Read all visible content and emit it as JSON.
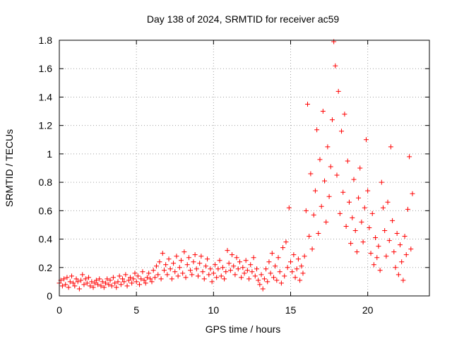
{
  "chart_data": {
    "type": "scatter",
    "title": "Day 138 of 2024, SRMTID for receiver ac59",
    "xlabel": "GPS time / hours",
    "ylabel": "SRMTID / TECUs",
    "xlim": [
      0,
      24
    ],
    "ylim": [
      0,
      1.8
    ],
    "xticks": [
      0,
      5,
      10,
      15,
      20
    ],
    "yticks": [
      0,
      0.2,
      0.4,
      0.6,
      0.8,
      1,
      1.2,
      1.4,
      1.6,
      1.8
    ],
    "xtick_labels": [
      "0",
      "5",
      "10",
      "15",
      "20"
    ],
    "ytick_labels": [
      "0",
      "0.2",
      "0.4",
      "0.6",
      "0.8",
      "1",
      "1.2",
      "1.4",
      "1.6",
      "1.8"
    ],
    "grid": true,
    "marker": "plus",
    "marker_color": "#ff0000",
    "series": [
      {
        "name": "SRMTID",
        "points": [
          [
            0.0,
            0.09
          ],
          [
            0.1,
            0.11
          ],
          [
            0.2,
            0.07
          ],
          [
            0.3,
            0.12
          ],
          [
            0.4,
            0.08
          ],
          [
            0.5,
            0.13
          ],
          [
            0.6,
            0.06
          ],
          [
            0.7,
            0.1
          ],
          [
            0.8,
            0.14
          ],
          [
            0.9,
            0.09
          ],
          [
            1.0,
            0.07
          ],
          [
            1.1,
            0.12
          ],
          [
            1.2,
            0.1
          ],
          [
            1.3,
            0.05
          ],
          [
            1.4,
            0.11
          ],
          [
            1.5,
            0.15
          ],
          [
            1.6,
            0.08
          ],
          [
            1.7,
            0.12
          ],
          [
            1.8,
            0.09
          ],
          [
            1.9,
            0.13
          ],
          [
            2.0,
            0.07
          ],
          [
            2.1,
            0.1
          ],
          [
            2.2,
            0.06
          ],
          [
            2.3,
            0.09
          ],
          [
            2.4,
            0.11
          ],
          [
            2.5,
            0.08
          ],
          [
            2.6,
            0.12
          ],
          [
            2.7,
            0.07
          ],
          [
            2.8,
            0.1
          ],
          [
            2.9,
            0.06
          ],
          [
            3.0,
            0.09
          ],
          [
            3.1,
            0.12
          ],
          [
            3.2,
            0.08
          ],
          [
            3.3,
            0.11
          ],
          [
            3.4,
            0.07
          ],
          [
            3.5,
            0.13
          ],
          [
            3.6,
            0.09
          ],
          [
            3.7,
            0.06
          ],
          [
            3.8,
            0.1
          ],
          [
            3.9,
            0.14
          ],
          [
            4.0,
            0.08
          ],
          [
            4.1,
            0.12
          ],
          [
            4.2,
            0.1
          ],
          [
            4.3,
            0.15
          ],
          [
            4.4,
            0.07
          ],
          [
            4.5,
            0.11
          ],
          [
            4.6,
            0.13
          ],
          [
            4.7,
            0.09
          ],
          [
            4.8,
            0.12
          ],
          [
            4.9,
            0.16
          ],
          [
            5.0,
            0.1
          ],
          [
            5.1,
            0.14
          ],
          [
            5.2,
            0.08
          ],
          [
            5.3,
            0.12
          ],
          [
            5.4,
            0.17
          ],
          [
            5.5,
            0.11
          ],
          [
            5.6,
            0.09
          ],
          [
            5.7,
            0.13
          ],
          [
            5.8,
            0.16
          ],
          [
            5.9,
            0.12
          ],
          [
            6.0,
            0.1
          ],
          [
            6.1,
            0.18
          ],
          [
            6.2,
            0.13
          ],
          [
            6.3,
            0.21
          ],
          [
            6.4,
            0.15
          ],
          [
            6.5,
            0.24
          ],
          [
            6.6,
            0.12
          ],
          [
            6.7,
            0.3
          ],
          [
            6.8,
            0.18
          ],
          [
            6.9,
            0.22
          ],
          [
            7.0,
            0.15
          ],
          [
            7.1,
            0.26
          ],
          [
            7.2,
            0.19
          ],
          [
            7.3,
            0.12
          ],
          [
            7.4,
            0.23
          ],
          [
            7.5,
            0.17
          ],
          [
            7.6,
            0.28
          ],
          [
            7.7,
            0.14
          ],
          [
            7.8,
            0.2
          ],
          [
            7.9,
            0.25
          ],
          [
            8.0,
            0.16
          ],
          [
            8.1,
            0.31
          ],
          [
            8.2,
            0.13
          ],
          [
            8.3,
            0.22
          ],
          [
            8.4,
            0.27
          ],
          [
            8.5,
            0.18
          ],
          [
            8.6,
            0.15
          ],
          [
            8.7,
            0.24
          ],
          [
            8.8,
            0.29
          ],
          [
            8.9,
            0.19
          ],
          [
            9.0,
            0.14
          ],
          [
            9.1,
            0.23
          ],
          [
            9.2,
            0.28
          ],
          [
            9.3,
            0.17
          ],
          [
            9.4,
            0.12
          ],
          [
            9.5,
            0.21
          ],
          [
            9.6,
            0.26
          ],
          [
            9.7,
            0.15
          ],
          [
            9.8,
            0.19
          ],
          [
            9.9,
            0.1
          ],
          [
            10.0,
            0.16
          ],
          [
            10.1,
            0.22
          ],
          [
            10.2,
            0.13
          ],
          [
            10.3,
            0.19
          ],
          [
            10.4,
            0.25
          ],
          [
            10.5,
            0.14
          ],
          [
            10.6,
            0.2
          ],
          [
            10.7,
            0.12
          ],
          [
            10.8,
            0.17
          ],
          [
            10.9,
            0.32
          ],
          [
            11.0,
            0.23
          ],
          [
            11.1,
            0.18
          ],
          [
            11.2,
            0.29
          ],
          [
            11.3,
            0.21
          ],
          [
            11.4,
            0.15
          ],
          [
            11.5,
            0.27
          ],
          [
            11.6,
            0.19
          ],
          [
            11.7,
            0.24
          ],
          [
            11.8,
            0.13
          ],
          [
            11.9,
            0.2
          ],
          [
            12.0,
            0.16
          ],
          [
            12.1,
            0.25
          ],
          [
            12.2,
            0.18
          ],
          [
            12.3,
            0.12
          ],
          [
            12.4,
            0.22
          ],
          [
            12.5,
            0.17
          ],
          [
            12.6,
            0.27
          ],
          [
            12.7,
            0.14
          ],
          [
            12.8,
            0.19
          ],
          [
            12.9,
            0.11
          ],
          [
            13.0,
            0.08
          ],
          [
            13.1,
            0.15
          ],
          [
            13.2,
            0.05
          ],
          [
            13.3,
            0.12
          ],
          [
            13.4,
            0.19
          ],
          [
            13.5,
            0.1
          ],
          [
            13.6,
            0.24
          ],
          [
            13.7,
            0.16
          ],
          [
            13.8,
            0.3
          ],
          [
            13.9,
            0.13
          ],
          [
            14.0,
            0.21
          ],
          [
            14.1,
            0.11
          ],
          [
            14.2,
            0.27
          ],
          [
            14.3,
            0.17
          ],
          [
            14.4,
            0.09
          ],
          [
            14.5,
            0.34
          ],
          [
            14.6,
            0.14
          ],
          [
            14.7,
            0.38
          ],
          [
            14.8,
            0.2
          ],
          [
            14.9,
            0.62
          ],
          [
            15.0,
            0.24
          ],
          [
            15.1,
            0.17
          ],
          [
            15.2,
            0.29
          ],
          [
            15.3,
            0.13
          ],
          [
            15.4,
            0.19
          ],
          [
            15.5,
            0.26
          ],
          [
            15.6,
            0.11
          ],
          [
            15.7,
            0.21
          ],
          [
            15.8,
            0.16
          ],
          [
            15.9,
            0.28
          ],
          [
            16.0,
            0.6
          ],
          [
            16.1,
            1.35
          ],
          [
            16.2,
            0.42
          ],
          [
            16.3,
            0.86
          ],
          [
            16.4,
            0.33
          ],
          [
            16.5,
            0.57
          ],
          [
            16.6,
            0.74
          ],
          [
            16.7,
            1.17
          ],
          [
            16.8,
            0.44
          ],
          [
            16.9,
            0.96
          ],
          [
            17.0,
            0.63
          ],
          [
            17.1,
            1.3
          ],
          [
            17.2,
            0.81
          ],
          [
            17.3,
            0.52
          ],
          [
            17.4,
            1.05
          ],
          [
            17.5,
            0.7
          ],
          [
            17.6,
            0.91
          ],
          [
            17.7,
            1.24
          ],
          [
            17.8,
            1.79
          ],
          [
            17.9,
            1.62
          ],
          [
            18.0,
            0.85
          ],
          [
            18.1,
            1.44
          ],
          [
            18.2,
            0.58
          ],
          [
            18.3,
            1.16
          ],
          [
            18.4,
            0.73
          ],
          [
            18.5,
            1.28
          ],
          [
            18.6,
            0.49
          ],
          [
            18.7,
            0.95
          ],
          [
            18.8,
            0.66
          ],
          [
            18.9,
            0.37
          ],
          [
            19.0,
            0.55
          ],
          [
            19.1,
            0.82
          ],
          [
            19.2,
            0.46
          ],
          [
            19.3,
            0.31
          ],
          [
            19.4,
            0.69
          ],
          [
            19.5,
            0.9
          ],
          [
            19.6,
            0.52
          ],
          [
            19.7,
            0.38
          ],
          [
            19.8,
            0.62
          ],
          [
            19.9,
            1.1
          ],
          [
            20.0,
            0.74
          ],
          [
            20.1,
            0.48
          ],
          [
            20.2,
            0.3
          ],
          [
            20.3,
            0.58
          ],
          [
            20.4,
            0.22
          ],
          [
            20.5,
            0.41
          ],
          [
            20.6,
            0.27
          ],
          [
            20.7,
            0.35
          ],
          [
            20.8,
            0.18
          ],
          [
            20.9,
            0.8
          ],
          [
            21.0,
            0.62
          ],
          [
            21.1,
            0.46
          ],
          [
            21.2,
            0.28
          ],
          [
            21.3,
            0.66
          ],
          [
            21.4,
            0.39
          ],
          [
            21.5,
            1.05
          ],
          [
            21.6,
            0.53
          ],
          [
            21.7,
            0.31
          ],
          [
            21.8,
            0.2
          ],
          [
            21.9,
            0.44
          ],
          [
            22.0,
            0.15
          ],
          [
            22.1,
            0.36
          ],
          [
            22.2,
            0.24
          ],
          [
            22.3,
            0.11
          ],
          [
            22.4,
            0.42
          ],
          [
            22.5,
            0.29
          ],
          [
            22.6,
            0.61
          ],
          [
            22.7,
            0.98
          ],
          [
            22.8,
            0.33
          ],
          [
            22.9,
            0.72
          ]
        ]
      }
    ]
  }
}
